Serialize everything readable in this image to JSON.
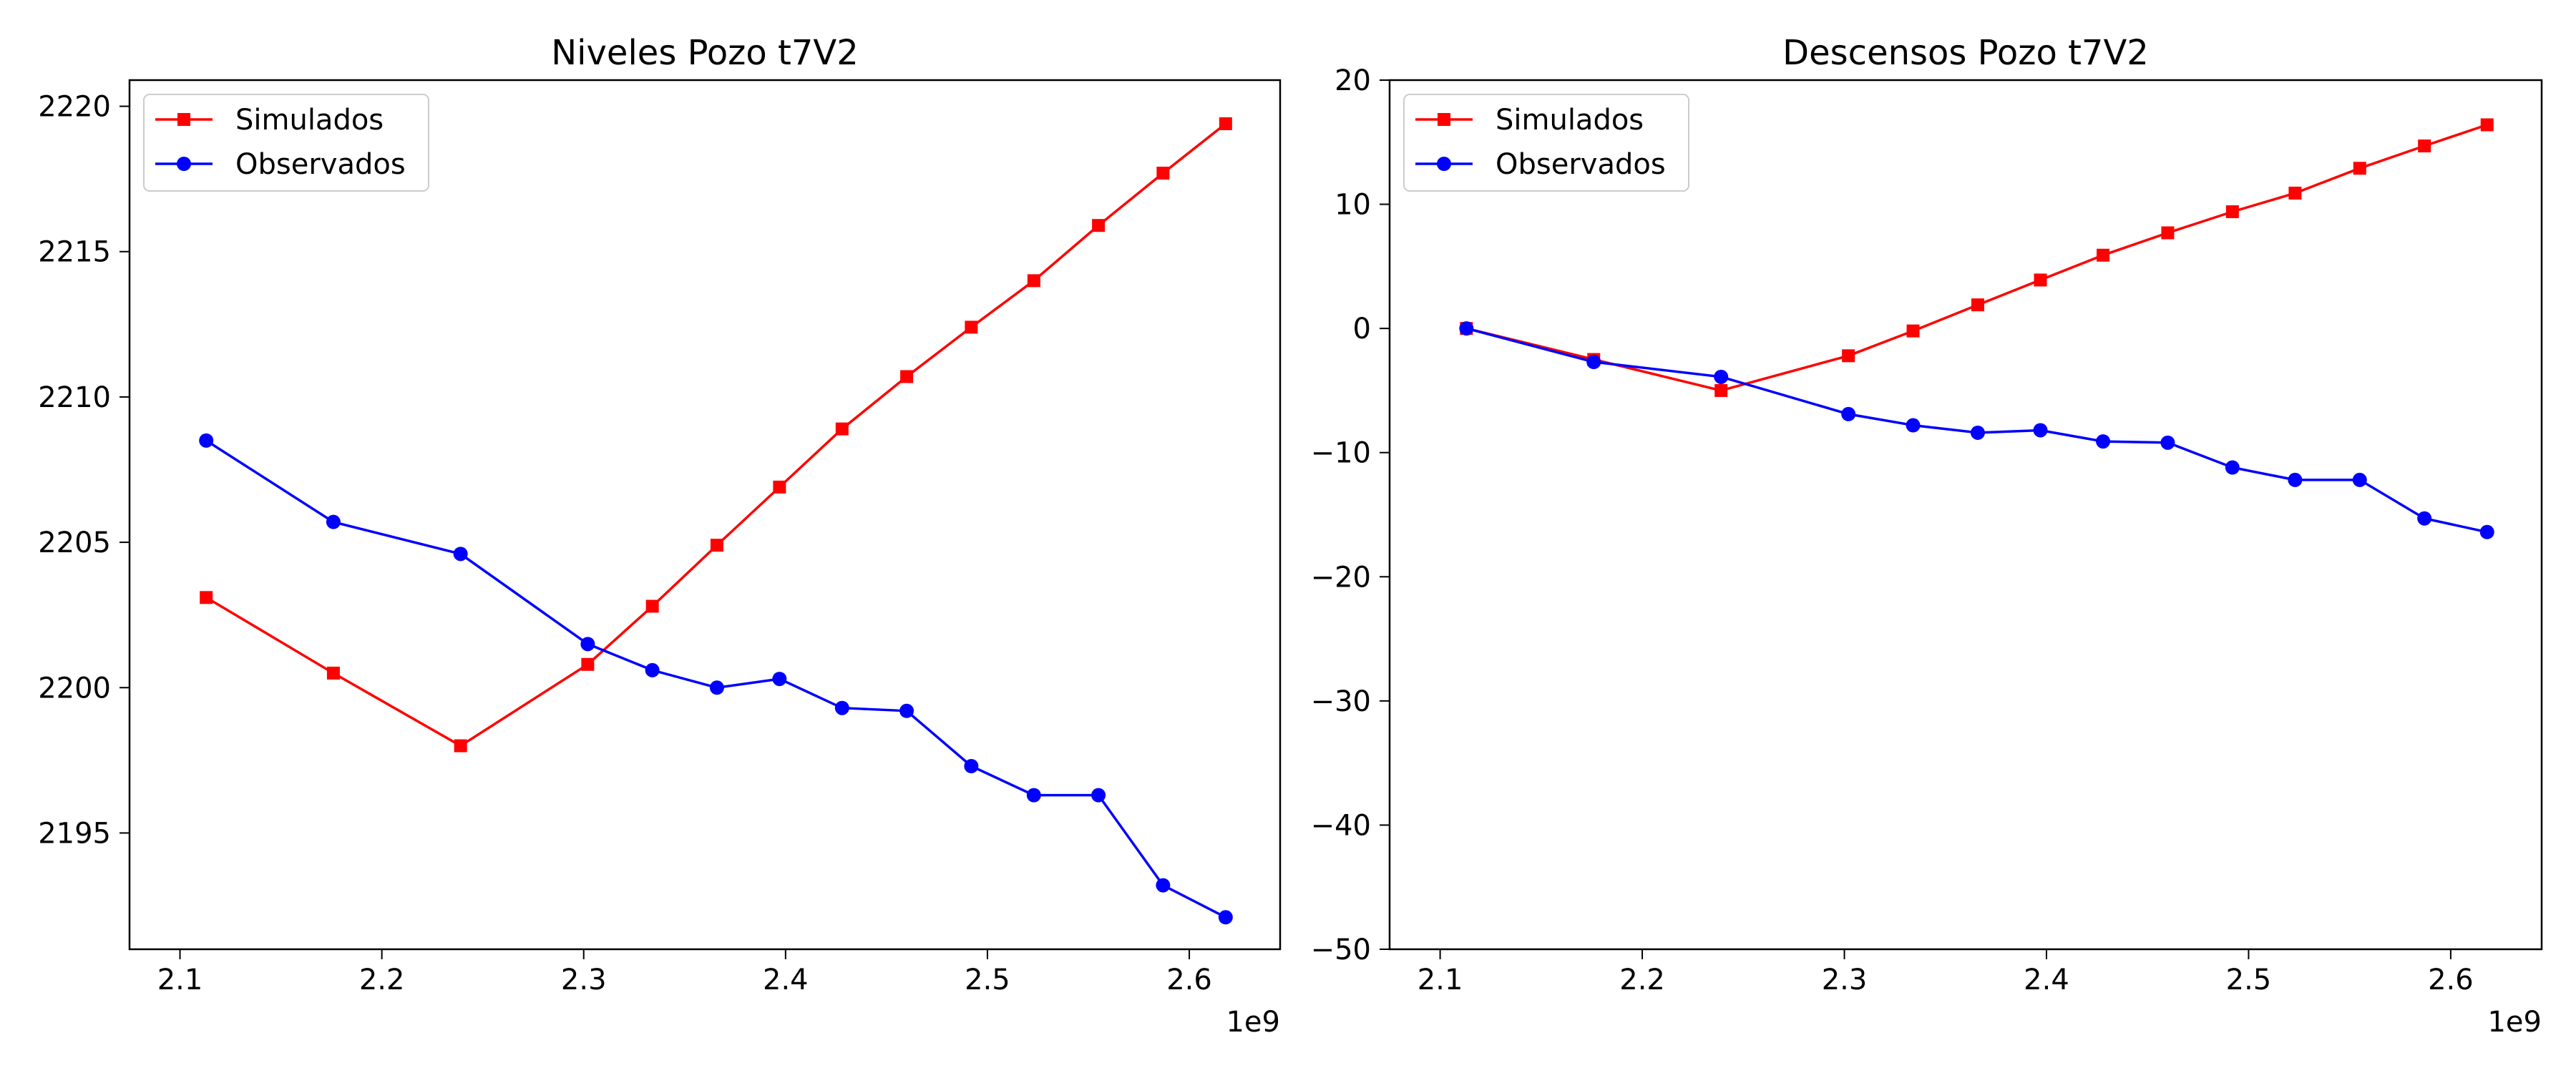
{
  "colors": {
    "simulados": "#ff0000",
    "observados": "#0000ff",
    "axis": "#000000",
    "background": "#ffffff"
  },
  "chart_data": [
    {
      "type": "line",
      "title": "Niveles Pozo t7V2",
      "xlabel": "",
      "ylabel": "",
      "x_offset_label": "1e9",
      "xlim": [
        2.075,
        2.645
      ],
      "ylim": [
        2191.0,
        2220.9
      ],
      "xticks": [
        2.1,
        2.2,
        2.3,
        2.4,
        2.5,
        2.6
      ],
      "xtick_labels": [
        "2.1",
        "2.2",
        "2.3",
        "2.4",
        "2.5",
        "2.6"
      ],
      "yticks": [
        2195,
        2200,
        2205,
        2210,
        2215,
        2220
      ],
      "ytick_labels": [
        "2195",
        "2200",
        "2205",
        "2210",
        "2215",
        "2220"
      ],
      "grid": false,
      "legend_position": "top-left",
      "x": [
        2.113,
        2.176,
        2.239,
        2.302,
        2.334,
        2.366,
        2.397,
        2.428,
        2.46,
        2.492,
        2.523,
        2.555,
        2.587,
        2.618
      ],
      "series": [
        {
          "name": "Simulados",
          "marker": "square",
          "color": "#ff0000",
          "values": [
            2203.1,
            2200.5,
            2198.0,
            2200.8,
            2202.8,
            2204.9,
            2206.9,
            2208.9,
            2210.7,
            2212.4,
            2214.0,
            2215.9,
            2217.7,
            2219.4
          ]
        },
        {
          "name": "Observados",
          "marker": "circle",
          "color": "#0000ff",
          "values": [
            2208.5,
            2205.7,
            2204.6,
            2201.5,
            2200.6,
            2200.0,
            2200.3,
            2199.3,
            2199.2,
            2197.3,
            2196.3,
            2196.3,
            2193.2,
            2192.1
          ]
        }
      ]
    },
    {
      "type": "line",
      "title": "Descensos Pozo t7V2",
      "xlabel": "",
      "ylabel": "",
      "x_offset_label": "1e9",
      "xlim": [
        2.075,
        2.645
      ],
      "ylim": [
        -50,
        20
      ],
      "xticks": [
        2.1,
        2.2,
        2.3,
        2.4,
        2.5,
        2.6
      ],
      "xtick_labels": [
        "2.1",
        "2.2",
        "2.3",
        "2.4",
        "2.5",
        "2.6"
      ],
      "yticks": [
        -50,
        -40,
        -30,
        -20,
        -10,
        0,
        10,
        20
      ],
      "ytick_labels": [
        "−50",
        "−40",
        "−30",
        "−20",
        "−10",
        "0",
        "10",
        "20"
      ],
      "grid": false,
      "legend_position": "top-left",
      "x": [
        2.113,
        2.176,
        2.239,
        2.302,
        2.334,
        2.366,
        2.397,
        2.428,
        2.46,
        2.492,
        2.523,
        2.555,
        2.587,
        2.618
      ],
      "series": [
        {
          "name": "Simulados",
          "marker": "square",
          "color": "#ff0000",
          "values": [
            0.0,
            -2.5,
            -5.0,
            -2.2,
            -0.2,
            1.9,
            3.9,
            5.9,
            7.7,
            9.4,
            10.9,
            12.9,
            14.7,
            16.4
          ]
        },
        {
          "name": "Observados",
          "marker": "circle",
          "color": "#0000ff",
          "values": [
            0.0,
            -2.7,
            -3.9,
            -6.9,
            -7.8,
            -8.4,
            -8.2,
            -9.1,
            -9.2,
            -11.2,
            -12.2,
            -12.2,
            -15.3,
            -16.4
          ]
        }
      ]
    }
  ]
}
